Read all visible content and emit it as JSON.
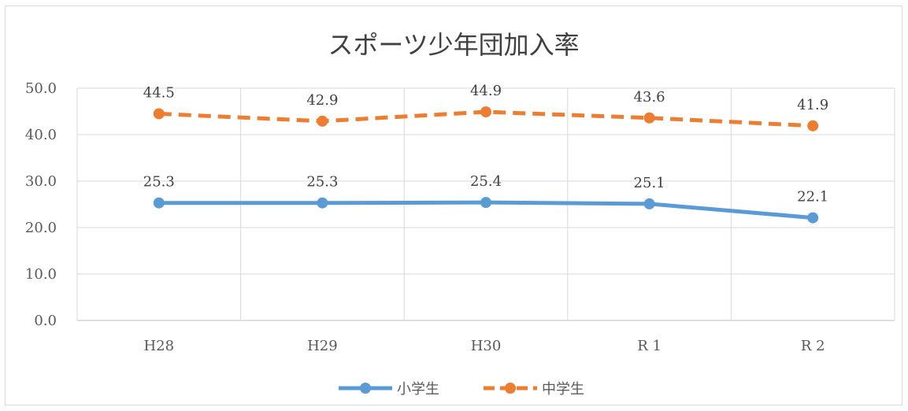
{
  "chart_data": {
    "type": "line",
    "title": "スポーツ少年団加入率",
    "categories": [
      "H28",
      "H29",
      "H30",
      "R 1",
      "R 2"
    ],
    "ylim": [
      0,
      50
    ],
    "yticks": [
      "0.0",
      "10.0",
      "20.0",
      "30.0",
      "40.0",
      "50.0"
    ],
    "grid": true,
    "legend_position": "bottom",
    "series": [
      {
        "name": "小学生",
        "values": [
          25.3,
          25.3,
          25.4,
          25.1,
          22.1
        ],
        "labels": [
          "25.3",
          "25.3",
          "25.4",
          "25.1",
          "22.1"
        ],
        "color": "#5b9bd5",
        "dash": "solid"
      },
      {
        "name": "中学生",
        "values": [
          44.5,
          42.9,
          44.9,
          43.6,
          41.9
        ],
        "labels": [
          "44.5",
          "42.9",
          "44.9",
          "43.6",
          "41.9"
        ],
        "color": "#ed7d31",
        "dash": "dashed"
      }
    ]
  }
}
